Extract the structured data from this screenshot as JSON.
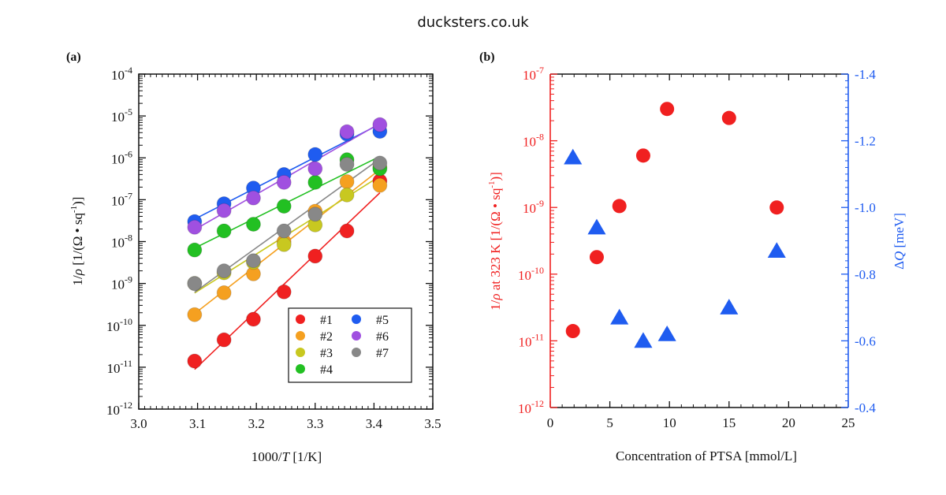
{
  "site": "ducksters.co.uk",
  "chart_data": [
    {
      "type": "scatter",
      "panel_label": "(a)",
      "xlabel_parts": [
        "1000/",
        "T",
        " [1/K]"
      ],
      "ylabel_parts": [
        "1/",
        "ρ",
        " [1/(Ω • sq",
        "-1",
        ")]"
      ],
      "xlim": [
        3.0,
        3.5
      ],
      "ylog_range": [
        -12,
        -4
      ],
      "x_ticks": [
        "3.0",
        "3.1",
        "3.2",
        "3.3",
        "3.4",
        "3.5"
      ],
      "y_tick_exponents": [
        "-12",
        "-11",
        "-10",
        "-9",
        "-8",
        "-7",
        "-6",
        "-5",
        "-4"
      ],
      "legend": {
        "position": "bottom-right",
        "columns": 2
      },
      "series": [
        {
          "name": "#1",
          "color": "#f02020",
          "x": [
            3.095,
            3.145,
            3.195,
            3.247,
            3.3,
            3.354,
            3.41
          ],
          "y": [
            1.4e-11,
            4.5e-11,
            1.4e-10,
            6.3e-10,
            4.5e-09,
            1.8e-08,
            2.8e-07
          ]
        },
        {
          "name": "#2",
          "color": "#f5a020",
          "x": [
            3.095,
            3.145,
            3.195,
            3.247,
            3.3,
            3.354,
            3.41
          ],
          "y": [
            1.8e-10,
            6e-10,
            1.7e-09,
            1e-08,
            5.3e-08,
            2.7e-07,
            2.2e-07
          ]
        },
        {
          "name": "#3",
          "color": "#c8c820",
          "x": [
            3.095,
            3.145,
            3.195,
            3.247,
            3.3,
            3.354,
            3.41
          ],
          "y": [
            1e-09,
            1.8e-09,
            3.2e-09,
            8.5e-09,
            2.5e-08,
            1.3e-07,
            6e-07
          ]
        },
        {
          "name": "#4",
          "color": "#22c022",
          "x": [
            3.095,
            3.145,
            3.195,
            3.247,
            3.3,
            3.354,
            3.41
          ],
          "y": [
            6.3e-09,
            1.8e-08,
            2.6e-08,
            7e-08,
            2.6e-07,
            9e-07,
            5.5e-07
          ]
        },
        {
          "name": "#5",
          "color": "#1f5cf0",
          "x": [
            3.095,
            3.145,
            3.195,
            3.247,
            3.3,
            3.354,
            3.41
          ],
          "y": [
            3e-08,
            8e-08,
            1.9e-07,
            4e-07,
            1.2e-06,
            3.7e-06,
            4.3e-06
          ]
        },
        {
          "name": "#6",
          "color": "#a050e0",
          "x": [
            3.095,
            3.145,
            3.195,
            3.247,
            3.3,
            3.354,
            3.41
          ],
          "y": [
            2.2e-08,
            5.5e-08,
            1.1e-07,
            2.6e-07,
            5.5e-07,
            4.2e-06,
            6.2e-06
          ]
        },
        {
          "name": "#7",
          "color": "#888888",
          "x": [
            3.095,
            3.145,
            3.195,
            3.247,
            3.3,
            3.354,
            3.41
          ],
          "y": [
            1e-09,
            2e-09,
            3.5e-09,
            1.8e-08,
            4.5e-08,
            7e-07,
            7.5e-07
          ]
        }
      ]
    },
    {
      "type": "scatter",
      "panel_label": "(b)",
      "xlabel": "Concentration of PTSA [mmol/L]",
      "xlim": [
        0,
        25
      ],
      "x_ticks": [
        "0",
        "5",
        "10",
        "15",
        "20",
        "25"
      ],
      "left_axis": {
        "color": "#f02020",
        "ylog_range": [
          -12,
          -7
        ],
        "tick_exponents": [
          "-12",
          "-11",
          "-10",
          "-9",
          "-8",
          "-7"
        ],
        "label_parts": [
          "1/",
          "ρ",
          " at 323 K [1/(Ω • sq",
          "-1",
          ")]"
        ]
      },
      "right_axis": {
        "color": "#1f5cf0",
        "ylim": [
          -0.4,
          -1.4
        ],
        "ticks": [
          "-1.4",
          "-1.2",
          "-1.0",
          "-0.8",
          "-0.6",
          "-0.4"
        ],
        "label_parts": [
          "Δ",
          "Q",
          " [meV]"
        ]
      },
      "series": [
        {
          "name": "1/ρ at 323 K",
          "axis": "left",
          "marker": "circle",
          "color": "#f02020",
          "x": [
            1.9,
            3.9,
            5.8,
            7.8,
            9.8,
            15.0,
            19.0
          ],
          "y": [
            1.4e-11,
            1.8e-10,
            1.05e-09,
            6e-09,
            3e-08,
            2.2e-08,
            1e-09
          ]
        },
        {
          "name": "ΔQ",
          "axis": "right",
          "marker": "triangle",
          "color": "#1f5cf0",
          "x": [
            1.9,
            3.9,
            5.8,
            7.8,
            9.8,
            15.0,
            19.0
          ],
          "y": [
            -1.15,
            -0.94,
            -0.67,
            -0.6,
            -0.62,
            -0.7,
            -0.87
          ]
        }
      ]
    }
  ]
}
